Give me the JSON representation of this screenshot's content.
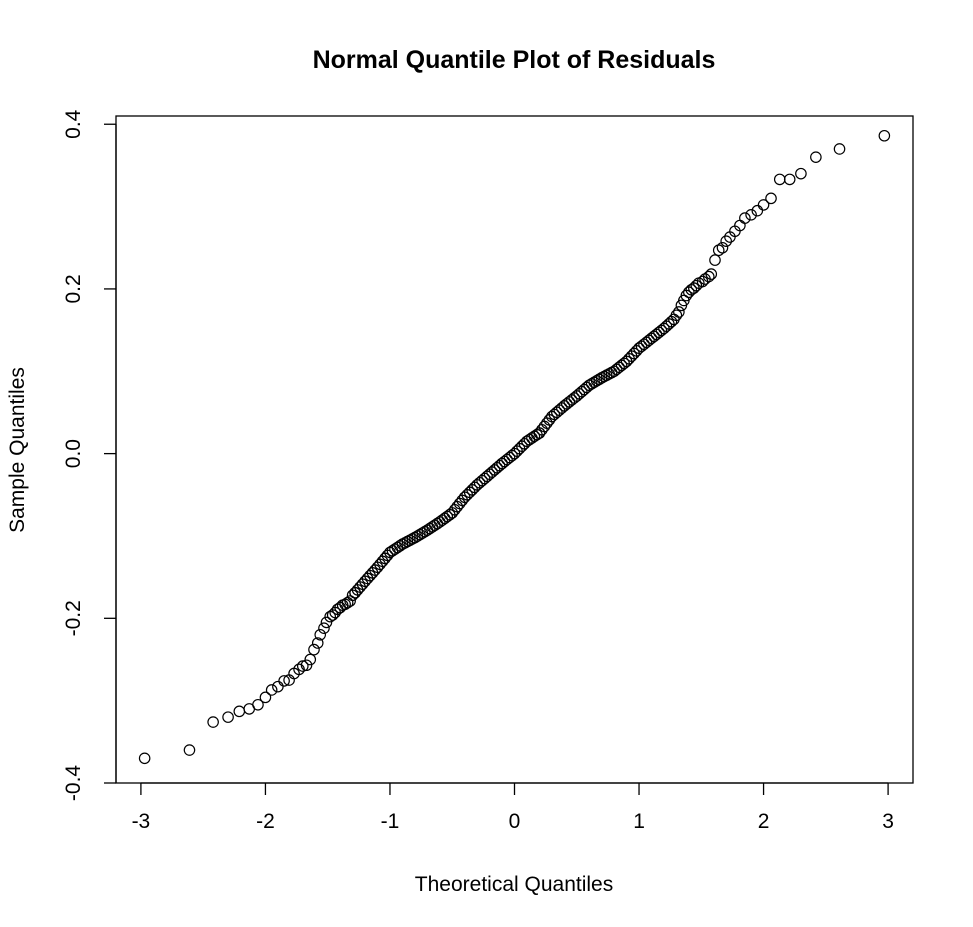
{
  "chart_data": {
    "type": "scatter",
    "title": "Normal Quantile Plot of Residuals",
    "xlabel": "Theoretical Quantiles",
    "ylabel": "Sample Quantiles",
    "xlim": [
      -3.2,
      3.2
    ],
    "ylim": [
      -0.4,
      0.41
    ],
    "x_ticks": [
      -3,
      -2,
      -1,
      0,
      1,
      2,
      3
    ],
    "x_tick_labels": [
      "-3",
      "-2",
      "-1",
      "0",
      "1",
      "2",
      "3"
    ],
    "y_ticks": [
      -0.4,
      -0.2,
      0.0,
      0.2,
      0.4
    ],
    "y_tick_labels": [
      "-0.4",
      "-0.2",
      "0.0",
      "0.2",
      "0.4"
    ],
    "grid": false,
    "legend": "none",
    "marker": "open-circle",
    "marker_color": "#000000",
    "qq_points": [
      [
        -2.97,
        -0.37
      ],
      [
        -2.61,
        -0.36
      ],
      [
        -2.42,
        -0.326
      ],
      [
        -2.3,
        -0.32
      ],
      [
        -2.21,
        -0.313
      ],
      [
        -2.13,
        -0.31
      ],
      [
        -2.06,
        -0.305
      ],
      [
        -2.0,
        -0.296
      ],
      [
        -1.95,
        -0.287
      ],
      [
        -1.9,
        -0.283
      ],
      [
        -1.85,
        -0.276
      ],
      [
        -1.81,
        -0.275
      ],
      [
        -1.77,
        -0.267
      ],
      [
        -1.73,
        -0.262
      ],
      [
        -1.7,
        -0.258
      ],
      [
        -1.67,
        -0.257
      ],
      [
        -1.64,
        -0.25
      ],
      [
        -1.61,
        -0.238
      ],
      [
        -1.58,
        -0.23
      ],
      [
        -1.56,
        -0.22
      ],
      [
        -1.53,
        -0.212
      ],
      [
        -1.51,
        -0.205
      ],
      [
        -1.48,
        -0.198
      ],
      [
        -1.46,
        -0.196
      ],
      [
        -1.44,
        -0.193
      ],
      [
        -1.42,
        -0.189
      ],
      [
        -1.4,
        -0.187
      ],
      [
        -1.38,
        -0.184
      ],
      [
        -1.36,
        -0.183
      ],
      [
        -1.34,
        -0.181
      ],
      [
        -1.32,
        -0.179
      ],
      [
        -1.3,
        -0.172
      ],
      [
        -1.28,
        -0.169
      ]
    ],
    "line_points": [
      [
        -1.28,
        -0.169
      ],
      [
        -1.2,
        -0.155
      ],
      [
        -1.1,
        -0.138
      ],
      [
        -1.0,
        -0.12
      ],
      [
        -0.9,
        -0.11
      ],
      [
        -0.8,
        -0.102
      ],
      [
        -0.7,
        -0.093
      ],
      [
        -0.6,
        -0.083
      ],
      [
        -0.5,
        -0.072
      ],
      [
        -0.4,
        -0.053
      ],
      [
        -0.3,
        -0.038
      ],
      [
        -0.2,
        -0.025
      ],
      [
        -0.1,
        -0.012
      ],
      [
        0.0,
        0.0
      ],
      [
        0.1,
        0.015
      ],
      [
        0.2,
        0.025
      ],
      [
        0.3,
        0.045
      ],
      [
        0.4,
        0.058
      ],
      [
        0.5,
        0.07
      ],
      [
        0.6,
        0.083
      ],
      [
        0.7,
        0.092
      ],
      [
        0.8,
        0.1
      ],
      [
        0.9,
        0.112
      ],
      [
        1.0,
        0.128
      ],
      [
        1.1,
        0.14
      ],
      [
        1.2,
        0.152
      ],
      [
        1.28,
        0.163
      ]
    ],
    "upper_tail_points": [
      [
        1.28,
        0.163
      ],
      [
        1.3,
        0.168
      ],
      [
        1.32,
        0.172
      ],
      [
        1.34,
        0.18
      ],
      [
        1.36,
        0.186
      ],
      [
        1.38,
        0.192
      ],
      [
        1.4,
        0.196
      ],
      [
        1.42,
        0.199
      ],
      [
        1.44,
        0.201
      ],
      [
        1.46,
        0.204
      ],
      [
        1.48,
        0.207
      ],
      [
        1.51,
        0.209
      ],
      [
        1.53,
        0.212
      ],
      [
        1.56,
        0.215
      ],
      [
        1.58,
        0.218
      ],
      [
        1.61,
        0.235
      ],
      [
        1.64,
        0.247
      ],
      [
        1.67,
        0.25
      ],
      [
        1.7,
        0.258
      ],
      [
        1.73,
        0.263
      ],
      [
        1.77,
        0.27
      ],
      [
        1.81,
        0.277
      ],
      [
        1.85,
        0.286
      ],
      [
        1.9,
        0.29
      ],
      [
        1.95,
        0.295
      ],
      [
        2.0,
        0.302
      ],
      [
        2.06,
        0.31
      ],
      [
        2.13,
        0.333
      ],
      [
        2.21,
        0.333
      ],
      [
        2.3,
        0.34
      ],
      [
        2.42,
        0.36
      ],
      [
        2.61,
        0.37
      ],
      [
        2.97,
        0.386
      ]
    ]
  }
}
